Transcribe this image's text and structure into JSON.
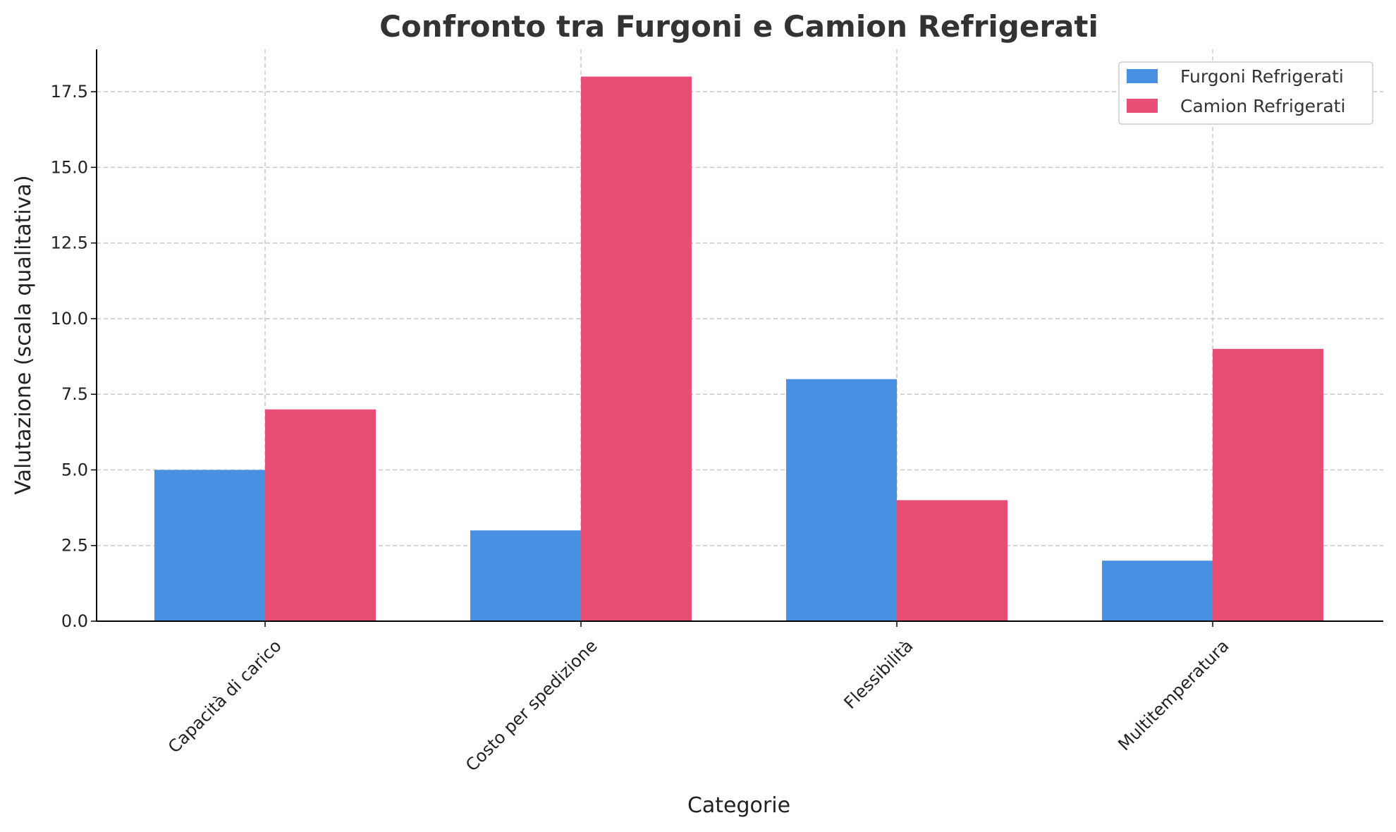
{
  "chart_data": {
    "type": "bar",
    "title": "Confronto tra Furgoni e Camion Refrigerati",
    "xlabel": "Categorie",
    "ylabel": "Valutazione (scala qualitativa)",
    "categories": [
      "Capacità di carico",
      "Costo per spedizione",
      "Flessibilità",
      "Multitemperatura"
    ],
    "series": [
      {
        "name": "Furgoni Refrigerati",
        "color": "#4a90e2",
        "values": [
          5,
          3,
          8,
          2
        ]
      },
      {
        "name": "Camion Refrigerati",
        "color": "#e94e77",
        "values": [
          7,
          18,
          4,
          9
        ]
      }
    ],
    "ylim": [
      0,
      18.9
    ],
    "yticks": [
      0.0,
      2.5,
      5.0,
      7.5,
      10.0,
      12.5,
      15.0,
      17.5
    ],
    "ytick_labels": [
      "0.0",
      "2.5",
      "5.0",
      "7.5",
      "10.0",
      "12.5",
      "15.0",
      "17.5"
    ],
    "grid": true,
    "legend_position": "top-right"
  }
}
